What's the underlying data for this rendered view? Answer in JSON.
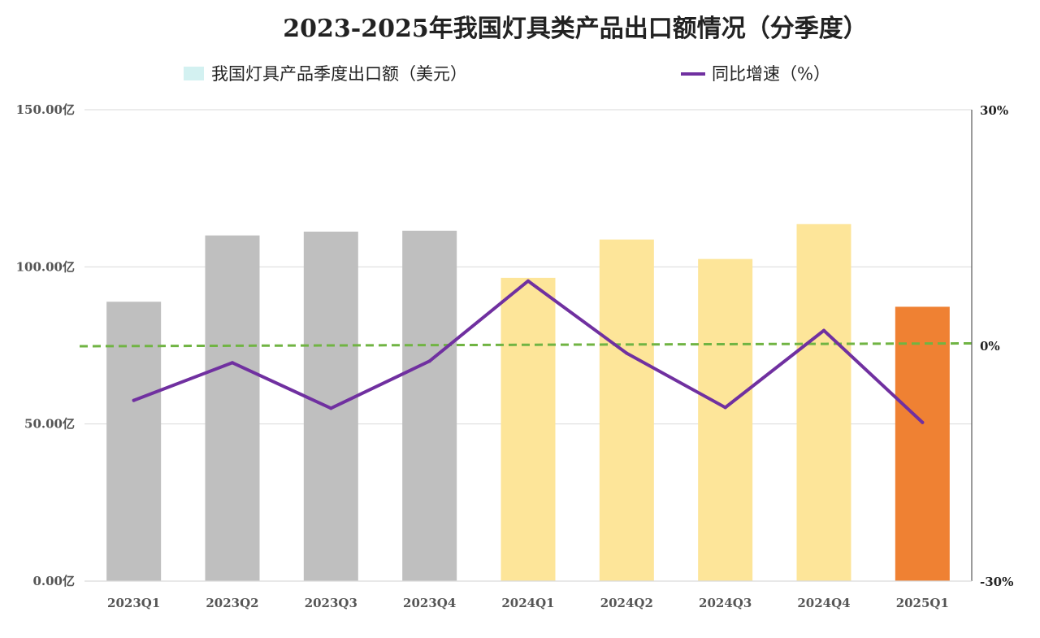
{
  "chart_data": {
    "type": "bar",
    "title": "2023-2025年我国灯具类产品出口额情况（分季度）",
    "categories": [
      "2023Q1",
      "2023Q2",
      "2023Q3",
      "2023Q4",
      "2024Q1",
      "2024Q2",
      "2024Q3",
      "2024Q4",
      "2025Q1"
    ],
    "series": [
      {
        "name": "我国灯具产品季度出口额（美元）",
        "type": "bar",
        "axis": "left",
        "values": [
          88.9,
          110.0,
          111.2,
          111.5,
          96.5,
          108.7,
          102.5,
          113.6,
          87.3
        ],
        "colors": [
          "#bfbfbf",
          "#bfbfbf",
          "#bfbfbf",
          "#bfbfbf",
          "#fde599",
          "#fde599",
          "#fde599",
          "#fde599",
          "#ef8133"
        ],
        "legend_color": "#d3f1f1"
      },
      {
        "name": "同比增速（%）",
        "type": "line",
        "axis": "right",
        "values": [
          -7.0,
          -2.2,
          -8.0,
          -2.0,
          8.2,
          -1.0,
          -7.9,
          1.9,
          -9.8
        ],
        "color": "#7030a0"
      }
    ],
    "reference_line": {
      "axis": "right",
      "value": 0,
      "color": "#70b443",
      "style": "dashed"
    },
    "yaxis_left": {
      "ylim": [
        0,
        150
      ],
      "ticks": [
        "0.00亿",
        "50.00亿",
        "100.00亿",
        "150.00亿"
      ]
    },
    "yaxis_right": {
      "ylim": [
        -30,
        30
      ],
      "ticks": [
        "-30%",
        "0%",
        "30%"
      ]
    },
    "grid": true,
    "legend_position": "top"
  }
}
